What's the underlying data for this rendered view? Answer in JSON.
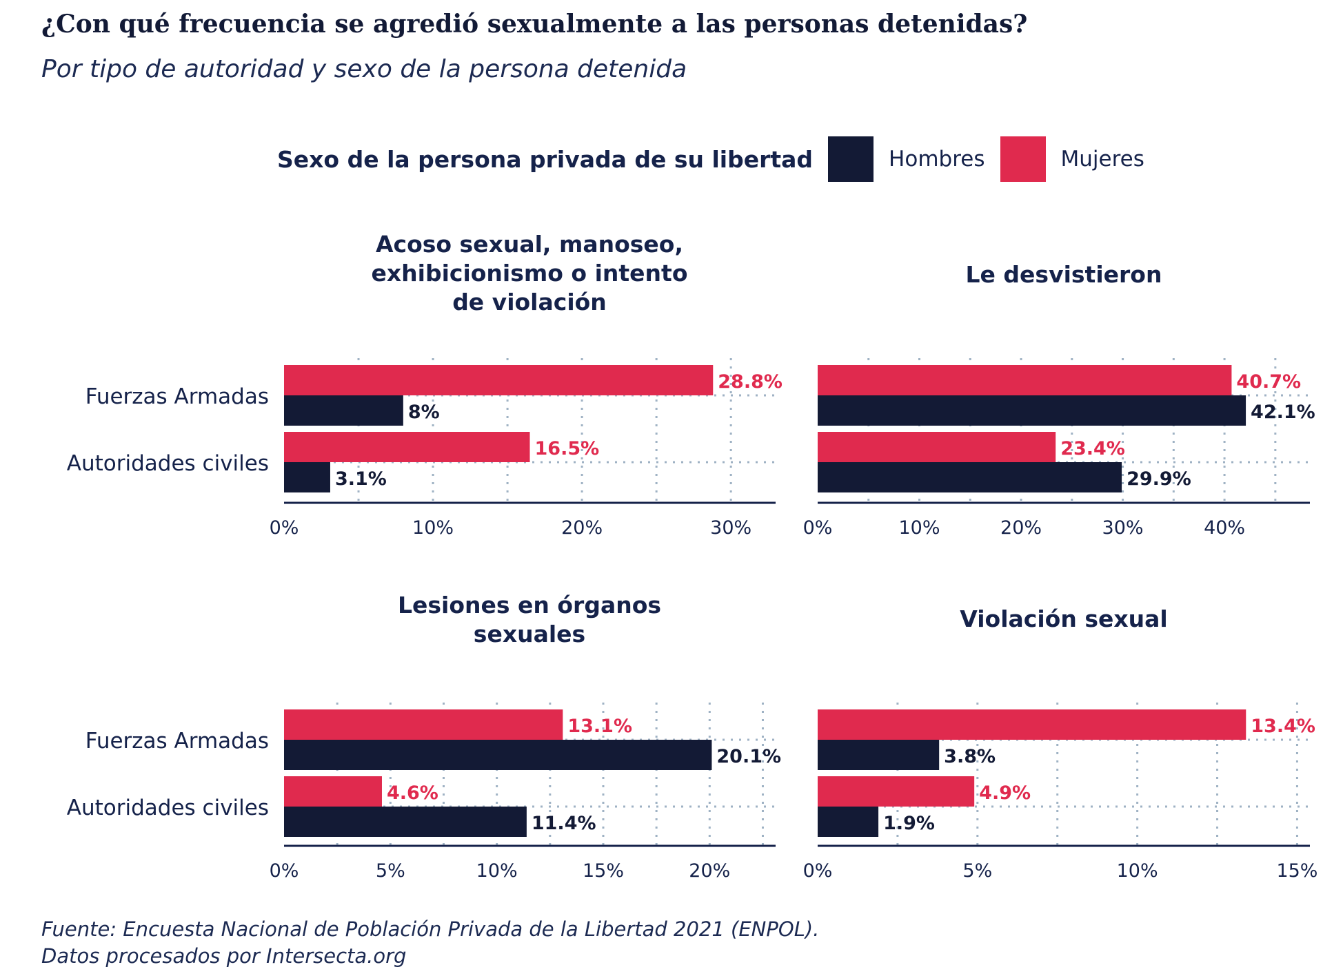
{
  "title": "¿Con qué frecuencia se agredió sexualmente a las personas detenidas?",
  "subtitle": "Por tipo de autoridad y sexo de la persona detenida",
  "legend": {
    "title": "Sexo de la persona privada de su libertad",
    "items": [
      {
        "label": "Hombres",
        "color": "#131a35"
      },
      {
        "label": "Mujeres",
        "color": "#e02a4e"
      }
    ]
  },
  "footer": {
    "line1": "Fuente: Encuesta Nacional de Población Privada de la Libertad 2021 (ENPOL).",
    "line2": "Datos procesados por Intersecta.org"
  },
  "chart_data": [
    {
      "type": "bar",
      "title_lines": [
        "Acoso sexual, manoseo,",
        "exhibicionismo o intento",
        "de violación"
      ],
      "categories": [
        "Fuerzas Armadas",
        "Autoridades civiles"
      ],
      "series": [
        {
          "name": "Mujeres",
          "values": [
            28.8,
            16.5
          ],
          "labels": [
            "28.8%",
            "16.5%"
          ]
        },
        {
          "name": "Hombres",
          "values": [
            8,
            3.1
          ],
          "labels": [
            "8%",
            "3.1%"
          ]
        }
      ],
      "xlim": [
        0,
        33
      ],
      "xticks": [
        0,
        10,
        20,
        30
      ],
      "xtick_labels": [
        "0%",
        "10%",
        "20%",
        "30%"
      ],
      "grid": true
    },
    {
      "type": "bar",
      "title_lines": [
        "Le desvistieron"
      ],
      "categories": [
        "Fuerzas Armadas",
        "Autoridades civiles"
      ],
      "series": [
        {
          "name": "Mujeres",
          "values": [
            40.7,
            23.4
          ],
          "labels": [
            "40.7%",
            "23.4%"
          ]
        },
        {
          "name": "Hombres",
          "values": [
            42.1,
            29.9
          ],
          "labels": [
            "42.1%",
            "29.9%"
          ]
        }
      ],
      "xlim": [
        0,
        48.4
      ],
      "xticks": [
        0,
        10,
        20,
        30,
        40
      ],
      "xtick_labels": [
        "0%",
        "10%",
        "20%",
        "30%",
        "40%"
      ],
      "grid": true
    },
    {
      "type": "bar",
      "title_lines": [
        "Lesiones en órganos",
        "sexuales"
      ],
      "categories": [
        "Fuerzas Armadas",
        "Autoridades civiles"
      ],
      "series": [
        {
          "name": "Mujeres",
          "values": [
            13.1,
            4.6
          ],
          "labels": [
            "13.1%",
            "4.6%"
          ]
        },
        {
          "name": "Hombres",
          "values": [
            20.1,
            11.4
          ],
          "labels": [
            "20.1%",
            "11.4%"
          ]
        }
      ],
      "xlim": [
        0,
        23.1
      ],
      "xticks": [
        0,
        5,
        10,
        15,
        20
      ],
      "xtick_labels": [
        "0%",
        "5%",
        "10%",
        "15%",
        "20%"
      ],
      "grid": true
    },
    {
      "type": "bar",
      "title_lines": [
        "Violación sexual"
      ],
      "categories": [
        "Fuerzas Armadas",
        "Autoridades civiles"
      ],
      "series": [
        {
          "name": "Mujeres",
          "values": [
            13.4,
            4.9
          ],
          "labels": [
            "13.4%",
            "4.9%"
          ]
        },
        {
          "name": "Hombres",
          "values": [
            3.8,
            1.9
          ],
          "labels": [
            "3.8%",
            "1.9%"
          ]
        }
      ],
      "xlim": [
        0,
        15.4
      ],
      "xticks": [
        0,
        5,
        10,
        15
      ],
      "xtick_labels": [
        "0%",
        "5%",
        "10%",
        "15%"
      ],
      "grid": true
    }
  ]
}
